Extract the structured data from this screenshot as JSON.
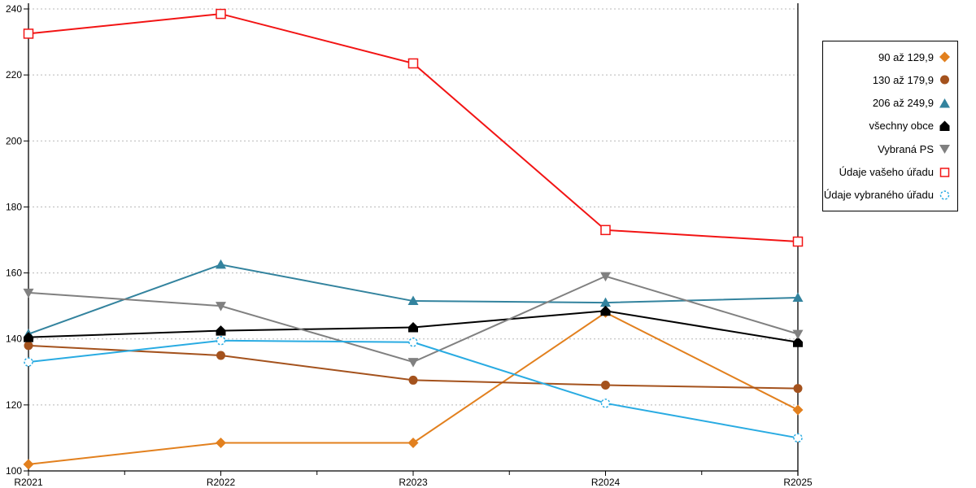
{
  "chart_data": {
    "type": "line",
    "title": "",
    "xlabel": "",
    "ylabel": "",
    "x_categories": [
      "R2021",
      "R2022",
      "R2023",
      "R2024",
      "R2025"
    ],
    "ylim": [
      100,
      240
    ],
    "ytick_step": 20,
    "y_tick_labels": [
      "100",
      "120",
      "140",
      "160",
      "180",
      "200",
      "220",
      "240"
    ],
    "grid": "horizontal-dashed",
    "gridline_color": "#b8b8b8",
    "axis_color": "#000000",
    "legend_position": "right",
    "series": [
      {
        "name": "90 až 129,9",
        "color": "#E2801E",
        "marker": "diamond",
        "values": [
          102,
          108.5,
          108.5,
          148,
          118.5
        ]
      },
      {
        "name": "130 až 179,9",
        "color": "#A4521D",
        "marker": "circle",
        "values": [
          138,
          135,
          127.5,
          126,
          125
        ]
      },
      {
        "name": "206 až 249,9",
        "color": "#33839E",
        "marker": "triangle-up",
        "values": [
          141.5,
          162.5,
          151.5,
          151,
          152.5
        ]
      },
      {
        "name": "všechny obce",
        "color": "#000000",
        "marker": "pentagon",
        "values": [
          140.5,
          142.5,
          143.5,
          148.5,
          139
        ]
      },
      {
        "name": "Vybraná PS",
        "color": "#808080",
        "marker": "triangle-down",
        "values": [
          154,
          150,
          133,
          159,
          141.5
        ]
      },
      {
        "name": "Údaje vašeho úřadu",
        "color": "#F21414",
        "marker": "open-square",
        "values": [
          232.5,
          238.5,
          223.5,
          173,
          169.5
        ]
      },
      {
        "name": "Údaje vybraného úřadu",
        "color": "#29ABE2",
        "marker": "open-circle",
        "values": [
          133,
          139.5,
          139,
          120.5,
          110
        ]
      }
    ]
  }
}
